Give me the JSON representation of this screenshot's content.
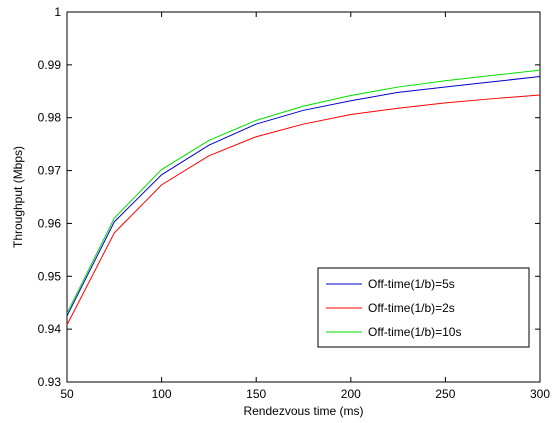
{
  "chart_data": {
    "type": "line",
    "xlabel": "Rendezvous time (ms)",
    "ylabel": "Throughput (Mbps)",
    "xlim": [
      50,
      300
    ],
    "ylim": [
      0.93,
      1.0
    ],
    "xticks": [
      50,
      100,
      150,
      200,
      250,
      300
    ],
    "yticks": [
      0.93,
      0.94,
      0.95,
      0.96,
      0.97,
      0.98,
      0.99,
      1.0
    ],
    "xtick_labels": [
      "50",
      "100",
      "150",
      "200",
      "250",
      "300"
    ],
    "ytick_labels": [
      "0.93",
      "0.94",
      "0.95",
      "0.96",
      "0.97",
      "0.98",
      "0.99",
      "1"
    ],
    "grid": false,
    "legend_position": "lower-right",
    "x": [
      50,
      75,
      100,
      125,
      150,
      175,
      200,
      225,
      250,
      275,
      300
    ],
    "series": [
      {
        "name": "Off-time(1/b)=5s",
        "color": "#0000cc",
        "values": [
          0.9425,
          0.9603,
          0.9692,
          0.9748,
          0.9788,
          0.9814,
          0.9832,
          0.9848,
          0.9858,
          0.9868,
          0.9878
        ]
      },
      {
        "name": "Off-time(1/b)=2s",
        "color": "#ff0000",
        "values": [
          0.9408,
          0.9582,
          0.9673,
          0.9728,
          0.9764,
          0.9788,
          0.9806,
          0.9818,
          0.9828,
          0.9836,
          0.9843
        ]
      },
      {
        "name": "Off-time(1/b)=10s",
        "color": "#00dd00",
        "values": [
          0.943,
          0.961,
          0.9702,
          0.9757,
          0.9795,
          0.9822,
          0.9842,
          0.9858,
          0.987,
          0.988,
          0.989
        ]
      }
    ]
  }
}
